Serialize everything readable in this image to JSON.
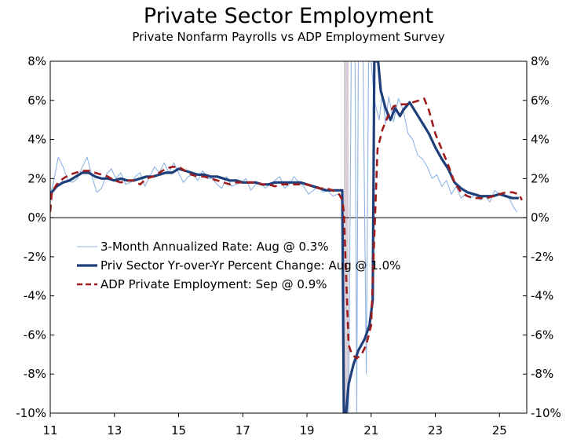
{
  "chart_data": {
    "type": "line",
    "title": "Private Sector Employment",
    "subtitle": "Private Nonfarm Payrolls vs ADP Employment Survey",
    "xlabel": "",
    "ylabel": "",
    "xlim": [
      2011.0,
      2025.85
    ],
    "ylim": [
      -10,
      8
    ],
    "x_ticks": [
      2011,
      2013,
      2015,
      2017,
      2019,
      2021,
      2023,
      2025
    ],
    "x_tick_labels": [
      "11",
      "13",
      "15",
      "17",
      "19",
      "21",
      "23",
      "25"
    ],
    "y_ticks": [
      -10,
      -8,
      -6,
      -4,
      -2,
      0,
      2,
      4,
      6,
      8
    ],
    "y_tick_labels": [
      "-10%",
      "-8%",
      "-6%",
      "-4%",
      "-2%",
      "0%",
      "2%",
      "4%",
      "6%",
      "8%"
    ],
    "y_tick_labels_right": [
      "-10%",
      "-8%",
      "-6%",
      "-4%",
      "-2%",
      "0%",
      "2%",
      "4%",
      "6%",
      "8%"
    ],
    "grid": false,
    "legend_position": "center-left",
    "recession_shading": {
      "start": 2020.15,
      "end": 2020.3,
      "color": "#d9cfd9"
    },
    "series": [
      {
        "name": "3-Month Annualized Rate: Aug @ 0.3%",
        "color": "#8fb4e3",
        "style": "thin",
        "points": [
          [
            2011.0,
            1.2
          ],
          [
            2011.1,
            1.8
          ],
          [
            2011.25,
            3.1
          ],
          [
            2011.4,
            2.6
          ],
          [
            2011.55,
            1.9
          ],
          [
            2011.7,
            1.8
          ],
          [
            2011.85,
            2.0
          ],
          [
            2012.0,
            2.6
          ],
          [
            2012.15,
            3.1
          ],
          [
            2012.3,
            2.1
          ],
          [
            2012.45,
            1.3
          ],
          [
            2012.6,
            1.5
          ],
          [
            2012.75,
            2.2
          ],
          [
            2012.9,
            2.5
          ],
          [
            2013.05,
            2.0
          ],
          [
            2013.2,
            2.3
          ],
          [
            2013.35,
            1.7
          ],
          [
            2013.5,
            1.8
          ],
          [
            2013.65,
            2.1
          ],
          [
            2013.8,
            2.3
          ],
          [
            2013.95,
            1.6
          ],
          [
            2014.1,
            2.1
          ],
          [
            2014.25,
            2.6
          ],
          [
            2014.4,
            2.3
          ],
          [
            2014.55,
            2.8
          ],
          [
            2014.7,
            2.3
          ],
          [
            2014.85,
            2.8
          ],
          [
            2015.0,
            2.3
          ],
          [
            2015.15,
            1.8
          ],
          [
            2015.3,
            2.1
          ],
          [
            2015.45,
            2.2
          ],
          [
            2015.6,
            1.9
          ],
          [
            2015.75,
            2.4
          ],
          [
            2015.9,
            2.0
          ],
          [
            2016.05,
            2.0
          ],
          [
            2016.2,
            1.7
          ],
          [
            2016.35,
            1.5
          ],
          [
            2016.5,
            2.1
          ],
          [
            2016.65,
            1.6
          ],
          [
            2016.8,
            1.7
          ],
          [
            2016.95,
            1.8
          ],
          [
            2017.1,
            2.0
          ],
          [
            2017.25,
            1.4
          ],
          [
            2017.4,
            1.7
          ],
          [
            2017.55,
            1.8
          ],
          [
            2017.7,
            1.5
          ],
          [
            2017.85,
            1.7
          ],
          [
            2018.0,
            1.9
          ],
          [
            2018.15,
            2.1
          ],
          [
            2018.3,
            1.5
          ],
          [
            2018.45,
            1.7
          ],
          [
            2018.6,
            2.1
          ],
          [
            2018.75,
            1.8
          ],
          [
            2018.9,
            1.6
          ],
          [
            2019.05,
            1.2
          ],
          [
            2019.2,
            1.4
          ],
          [
            2019.35,
            1.6
          ],
          [
            2019.5,
            1.3
          ],
          [
            2019.65,
            1.4
          ],
          [
            2019.8,
            1.1
          ],
          [
            2019.95,
            1.2
          ],
          [
            2020.1,
            1.1
          ],
          [
            2020.17,
            -10
          ],
          [
            2020.3,
            -10
          ],
          [
            2020.38,
            8
          ],
          [
            2020.5,
            8
          ],
          [
            2020.55,
            -10
          ],
          [
            2020.6,
            8
          ],
          [
            2020.75,
            8
          ],
          [
            2020.85,
            -8
          ],
          [
            2020.92,
            8
          ],
          [
            2021.0,
            8
          ],
          [
            2021.1,
            6.0
          ],
          [
            2021.25,
            5.0
          ],
          [
            2021.35,
            6.4
          ],
          [
            2021.45,
            4.8
          ],
          [
            2021.55,
            6.2
          ],
          [
            2021.7,
            4.9
          ],
          [
            2021.85,
            6.1
          ],
          [
            2022.0,
            5.5
          ],
          [
            2022.15,
            4.3
          ],
          [
            2022.3,
            4.0
          ],
          [
            2022.45,
            3.2
          ],
          [
            2022.6,
            3.0
          ],
          [
            2022.75,
            2.6
          ],
          [
            2022.9,
            2.0
          ],
          [
            2023.05,
            2.2
          ],
          [
            2023.2,
            1.6
          ],
          [
            2023.35,
            1.9
          ],
          [
            2023.5,
            1.2
          ],
          [
            2023.65,
            1.6
          ],
          [
            2023.8,
            1.0
          ],
          [
            2023.95,
            1.2
          ],
          [
            2024.1,
            1.0
          ],
          [
            2024.25,
            1.2
          ],
          [
            2024.4,
            0.9
          ],
          [
            2024.55,
            1.1
          ],
          [
            2024.7,
            0.8
          ],
          [
            2024.85,
            1.4
          ],
          [
            2025.0,
            1.2
          ],
          [
            2025.15,
            1.2
          ],
          [
            2025.3,
            1.0
          ],
          [
            2025.45,
            0.5
          ],
          [
            2025.55,
            0.3
          ]
        ]
      },
      {
        "name": "Priv Sector Yr-over-Yr Percent Change: Aug @ 1.0%",
        "color": "#1f3f7a",
        "style": "thick",
        "points": [
          [
            2011.0,
            1.2
          ],
          [
            2011.2,
            1.6
          ],
          [
            2011.4,
            1.8
          ],
          [
            2011.6,
            1.9
          ],
          [
            2011.8,
            2.1
          ],
          [
            2012.0,
            2.3
          ],
          [
            2012.2,
            2.3
          ],
          [
            2012.4,
            2.1
          ],
          [
            2012.6,
            2.0
          ],
          [
            2012.8,
            2.0
          ],
          [
            2013.0,
            1.9
          ],
          [
            2013.2,
            2.0
          ],
          [
            2013.4,
            1.9
          ],
          [
            2013.6,
            1.9
          ],
          [
            2013.8,
            2.0
          ],
          [
            2014.0,
            2.1
          ],
          [
            2014.2,
            2.1
          ],
          [
            2014.4,
            2.2
          ],
          [
            2014.6,
            2.3
          ],
          [
            2014.8,
            2.3
          ],
          [
            2015.0,
            2.5
          ],
          [
            2015.2,
            2.4
          ],
          [
            2015.4,
            2.3
          ],
          [
            2015.6,
            2.2
          ],
          [
            2015.8,
            2.2
          ],
          [
            2016.0,
            2.1
          ],
          [
            2016.2,
            2.1
          ],
          [
            2016.4,
            2.0
          ],
          [
            2016.6,
            1.9
          ],
          [
            2016.8,
            1.9
          ],
          [
            2017.0,
            1.8
          ],
          [
            2017.2,
            1.8
          ],
          [
            2017.4,
            1.8
          ],
          [
            2017.6,
            1.7
          ],
          [
            2017.8,
            1.7
          ],
          [
            2018.0,
            1.8
          ],
          [
            2018.2,
            1.8
          ],
          [
            2018.4,
            1.8
          ],
          [
            2018.6,
            1.8
          ],
          [
            2018.8,
            1.8
          ],
          [
            2019.0,
            1.7
          ],
          [
            2019.2,
            1.6
          ],
          [
            2019.4,
            1.5
          ],
          [
            2019.6,
            1.4
          ],
          [
            2019.8,
            1.4
          ],
          [
            2020.0,
            1.4
          ],
          [
            2020.1,
            1.4
          ],
          [
            2020.15,
            -10
          ],
          [
            2020.22,
            -10
          ],
          [
            2020.3,
            -8.5
          ],
          [
            2020.45,
            -7.5
          ],
          [
            2020.6,
            -6.8
          ],
          [
            2020.8,
            -6.2
          ],
          [
            2020.95,
            -5.5
          ],
          [
            2021.05,
            -4.2
          ],
          [
            2021.1,
            8
          ],
          [
            2021.15,
            8
          ],
          [
            2021.22,
            8
          ],
          [
            2021.3,
            6.5
          ],
          [
            2021.45,
            5.6
          ],
          [
            2021.6,
            5.0
          ],
          [
            2021.75,
            5.6
          ],
          [
            2021.9,
            5.2
          ],
          [
            2022.0,
            5.5
          ],
          [
            2022.1,
            5.7
          ],
          [
            2022.2,
            5.9
          ],
          [
            2022.35,
            5.5
          ],
          [
            2022.5,
            5.1
          ],
          [
            2022.65,
            4.7
          ],
          [
            2022.8,
            4.3
          ],
          [
            2023.0,
            3.6
          ],
          [
            2023.2,
            3.0
          ],
          [
            2023.4,
            2.5
          ],
          [
            2023.6,
            1.8
          ],
          [
            2023.8,
            1.5
          ],
          [
            2024.0,
            1.3
          ],
          [
            2024.2,
            1.2
          ],
          [
            2024.4,
            1.1
          ],
          [
            2024.6,
            1.1
          ],
          [
            2024.8,
            1.1
          ],
          [
            2025.0,
            1.2
          ],
          [
            2025.2,
            1.1
          ],
          [
            2025.4,
            1.0
          ],
          [
            2025.6,
            1.0
          ]
        ]
      },
      {
        "name": "ADP Private Employment: Sep @ 0.9%",
        "color": "#a01c1c",
        "style": "dashed",
        "points": [
          [
            2011.0,
            0.3
          ],
          [
            2011.05,
            1.3
          ],
          [
            2011.2,
            1.7
          ],
          [
            2011.4,
            2.0
          ],
          [
            2011.6,
            2.2
          ],
          [
            2011.8,
            2.3
          ],
          [
            2012.0,
            2.4
          ],
          [
            2012.2,
            2.4
          ],
          [
            2012.4,
            2.3
          ],
          [
            2012.6,
            2.2
          ],
          [
            2012.8,
            2.1
          ],
          [
            2013.0,
            1.9
          ],
          [
            2013.2,
            1.8
          ],
          [
            2013.4,
            1.9
          ],
          [
            2013.6,
            1.9
          ],
          [
            2013.8,
            1.7
          ],
          [
            2014.0,
            2.0
          ],
          [
            2014.2,
            2.1
          ],
          [
            2014.4,
            2.3
          ],
          [
            2014.6,
            2.5
          ],
          [
            2014.8,
            2.6
          ],
          [
            2015.0,
            2.6
          ],
          [
            2015.2,
            2.4
          ],
          [
            2015.4,
            2.2
          ],
          [
            2015.6,
            2.1
          ],
          [
            2015.8,
            2.1
          ],
          [
            2016.0,
            2.0
          ],
          [
            2016.2,
            1.9
          ],
          [
            2016.4,
            1.8
          ],
          [
            2016.6,
            1.7
          ],
          [
            2016.8,
            1.8
          ],
          [
            2017.0,
            1.8
          ],
          [
            2017.2,
            1.8
          ],
          [
            2017.4,
            1.8
          ],
          [
            2017.6,
            1.7
          ],
          [
            2017.8,
            1.7
          ],
          [
            2018.0,
            1.6
          ],
          [
            2018.2,
            1.7
          ],
          [
            2018.4,
            1.7
          ],
          [
            2018.6,
            1.7
          ],
          [
            2018.8,
            1.7
          ],
          [
            2019.0,
            1.7
          ],
          [
            2019.2,
            1.6
          ],
          [
            2019.4,
            1.5
          ],
          [
            2019.6,
            1.5
          ],
          [
            2019.8,
            1.4
          ],
          [
            2020.0,
            1.2
          ],
          [
            2020.1,
            0.9
          ],
          [
            2020.15,
            0.3
          ],
          [
            2020.3,
            -6.5
          ],
          [
            2020.4,
            -7.0
          ],
          [
            2020.55,
            -7.2
          ],
          [
            2020.7,
            -7.0
          ],
          [
            2020.85,
            -6.5
          ],
          [
            2021.0,
            -5.5
          ],
          [
            2021.1,
            -1.0
          ],
          [
            2021.2,
            3.5
          ],
          [
            2021.35,
            4.5
          ],
          [
            2021.5,
            5.1
          ],
          [
            2021.7,
            5.7
          ],
          [
            2021.9,
            5.8
          ],
          [
            2022.1,
            5.8
          ],
          [
            2022.3,
            5.9
          ],
          [
            2022.5,
            6.0
          ],
          [
            2022.65,
            6.1
          ],
          [
            2022.8,
            5.5
          ],
          [
            2023.0,
            4.3
          ],
          [
            2023.2,
            3.5
          ],
          [
            2023.4,
            2.7
          ],
          [
            2023.6,
            1.8
          ],
          [
            2023.8,
            1.3
          ],
          [
            2024.0,
            1.1
          ],
          [
            2024.2,
            1.0
          ],
          [
            2024.4,
            1.0
          ],
          [
            2024.6,
            1.0
          ],
          [
            2024.8,
            1.1
          ],
          [
            2025.0,
            1.2
          ],
          [
            2025.2,
            1.3
          ],
          [
            2025.4,
            1.3
          ],
          [
            2025.6,
            1.2
          ],
          [
            2025.7,
            0.9
          ]
        ]
      }
    ]
  }
}
